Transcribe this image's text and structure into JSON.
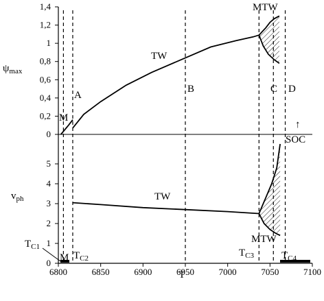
{
  "chart_data": [
    {
      "type": "line",
      "panel": "upper",
      "ylabel_symbol": "ψ",
      "ylabel_sub": "max",
      "ylim": [
        0,
        1.4
      ],
      "yticks": [
        "0",
        "0,2",
        "0,4",
        "0,6",
        "0,8",
        "1",
        "1,2",
        "1,4"
      ],
      "series": [
        {
          "name": "TW",
          "x": [
            6817,
            6830,
            6850,
            6880,
            6910,
            6950,
            6980,
            7010,
            7030,
            7037
          ],
          "y": [
            0.07,
            0.22,
            0.36,
            0.54,
            0.68,
            0.84,
            0.96,
            1.03,
            1.07,
            1.09
          ]
        },
        {
          "name": "M",
          "x": [
            6803,
            6812,
            6817
          ],
          "y": [
            0.0,
            0.1,
            0.16
          ]
        },
        {
          "name": "MTW upper",
          "x": [
            7037,
            7045,
            7050,
            7055,
            7061
          ],
          "y": [
            1.09,
            1.17,
            1.23,
            1.27,
            1.3
          ]
        },
        {
          "name": "MTW lower",
          "x": [
            7037,
            7042,
            7048,
            7055,
            7061
          ],
          "y": [
            1.09,
            0.97,
            0.88,
            0.82,
            0.78
          ]
        }
      ],
      "labels": [
        "TW",
        "MTW",
        "M",
        "A",
        "B",
        "C",
        "D",
        "SOC"
      ]
    },
    {
      "type": "line",
      "panel": "lower",
      "ylabel_symbol": "v",
      "ylabel_sub": "ph",
      "ylim": [
        0,
        6
      ],
      "yticks": [
        "0",
        "1",
        "2",
        "3",
        "4",
        "5"
      ],
      "series": [
        {
          "name": "TW",
          "x": [
            6817,
            6850,
            6900,
            6950,
            7000,
            7037
          ],
          "y": [
            3.05,
            2.95,
            2.8,
            2.7,
            2.6,
            2.5
          ]
        },
        {
          "name": "MTW upper",
          "x": [
            7037,
            7045,
            7052,
            7058,
            7062
          ],
          "y": [
            2.5,
            3.3,
            4.0,
            4.8,
            6.0
          ]
        },
        {
          "name": "MTW lower",
          "x": [
            7037,
            7043,
            7050,
            7057,
            7062
          ],
          "y": [
            2.5,
            2.0,
            1.7,
            1.5,
            1.4
          ]
        }
      ],
      "labels": [
        "TW",
        "MTW",
        "M",
        "T_C1",
        "T_C2",
        "T_C3",
        "T_C4"
      ]
    }
  ],
  "xaxis": {
    "label": "T",
    "xlim": [
      6800,
      7100
    ],
    "ticks": [
      "6800",
      "6850",
      "6900",
      "6950",
      "7000",
      "7050",
      "7100"
    ]
  },
  "vertical_lines": [
    6806,
    6817,
    6950,
    7037,
    7054,
    7068
  ],
  "texts": {
    "TW": "TW",
    "MTW": "MTW",
    "M": "M",
    "A": "A",
    "B": "B",
    "C": "C",
    "D": "D",
    "SOC": "SOC",
    "arrow": "↑",
    "TC": "T",
    "sub_C": "C",
    "sub_C1": "C1",
    "sub_C2": "C2",
    "sub_C3": "C3",
    "sub_C4": "C4"
  }
}
